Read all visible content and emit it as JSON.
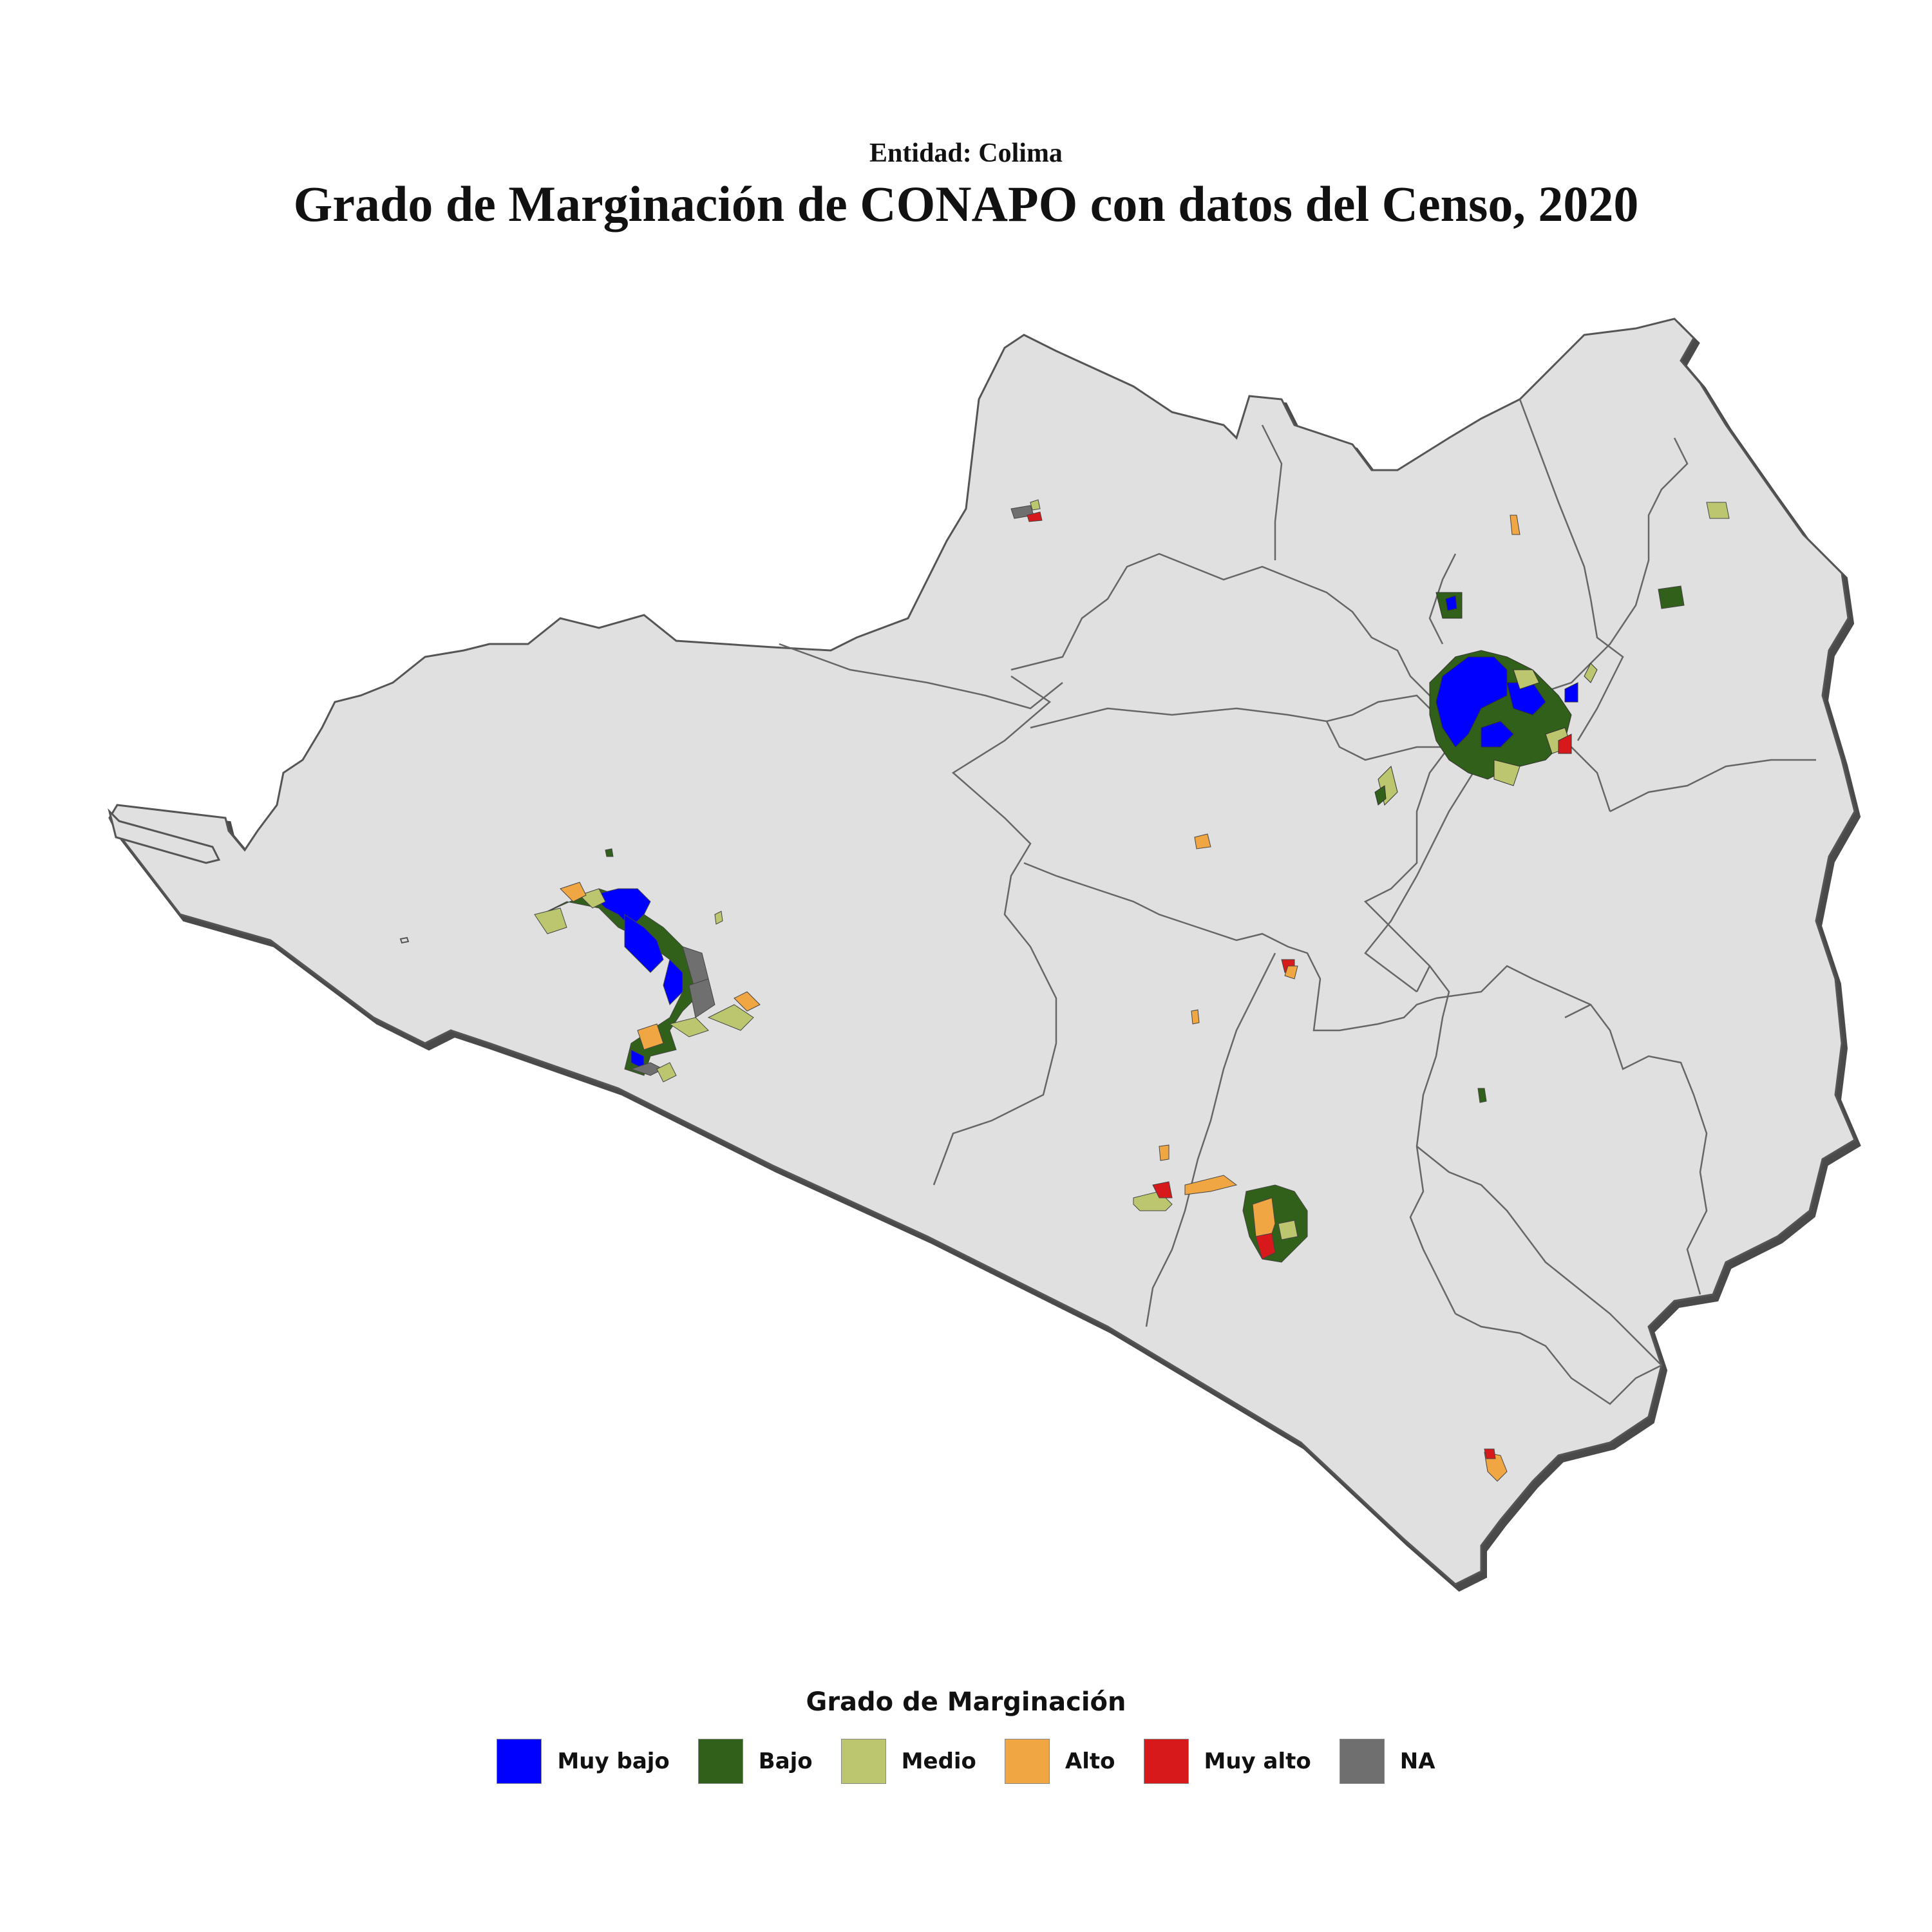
{
  "header": {
    "subtitle": "Entidad: Colima",
    "title": "Grado de Marginación de CONAPO con datos del Censo, 2020"
  },
  "legend": {
    "title": "Grado de Marginación",
    "items": [
      {
        "label": "Muy bajo",
        "color": "#0000ff"
      },
      {
        "label": "Bajo",
        "color": "#31601a"
      },
      {
        "label": "Medio",
        "color": "#bcc66e"
      },
      {
        "label": "Alto",
        "color": "#f0a642"
      },
      {
        "label": "Muy alto",
        "color": "#d7191c"
      },
      {
        "label": "NA",
        "color": "#6f6f6f"
      }
    ]
  },
  "map": {
    "state_fill": "#e0e0e0",
    "border_color": "#555555",
    "shadow_color": "#4a4a4a"
  }
}
